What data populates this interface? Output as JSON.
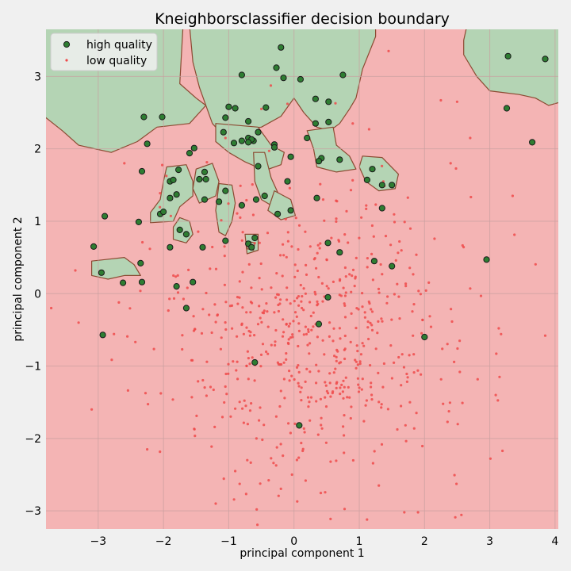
{
  "chart_data": {
    "type": "scatter",
    "title": "Kneighborsclassifier decision boundary",
    "xlabel": "principal component 1",
    "ylabel": "principal component 2",
    "xlim": [
      -3.8,
      4.05
    ],
    "ylim": [
      -3.25,
      3.65
    ],
    "xticks": [
      -3,
      -2,
      -1,
      0,
      1,
      2,
      3,
      4
    ],
    "yticks": [
      -3,
      -2,
      -1,
      0,
      1,
      2,
      3
    ],
    "grid": true,
    "legend": {
      "placement": "top-left"
    },
    "background_region_color": "#f4b4b4",
    "highlight_region_color": "#b4d4b4",
    "boundary_color": "#8b4a32",
    "series": [
      {
        "name": "high quality",
        "color": "#2e7d32",
        "edge": "#1b1b1b",
        "points": [
          [
            3.28,
            3.28
          ],
          [
            3.85,
            3.24
          ],
          [
            3.26,
            2.56
          ],
          [
            3.65,
            2.09
          ],
          [
            -0.2,
            3.4
          ],
          [
            -0.27,
            3.12
          ],
          [
            -0.8,
            3.02
          ],
          [
            -0.16,
            2.98
          ],
          [
            0.1,
            2.96
          ],
          [
            0.75,
            3.02
          ],
          [
            -1.0,
            2.58
          ],
          [
            -0.9,
            2.56
          ],
          [
            -0.43,
            2.57
          ],
          [
            0.33,
            2.69
          ],
          [
            0.53,
            2.65
          ],
          [
            -2.3,
            2.44
          ],
          [
            -2.02,
            2.44
          ],
          [
            -1.05,
            2.43
          ],
          [
            -0.7,
            2.38
          ],
          [
            0.33,
            2.35
          ],
          [
            0.53,
            2.37
          ],
          [
            -1.08,
            2.23
          ],
          [
            -0.55,
            2.23
          ],
          [
            -0.7,
            2.15
          ],
          [
            -0.8,
            2.11
          ],
          [
            -0.62,
            2.11
          ],
          [
            -0.3,
            2.06
          ],
          [
            -0.3,
            2.02
          ],
          [
            0.2,
            2.15
          ],
          [
            -2.25,
            2.07
          ],
          [
            -0.92,
            2.08
          ],
          [
            -0.65,
            2.13
          ],
          [
            -0.7,
            2.09
          ],
          [
            -1.53,
            2.01
          ],
          [
            -1.6,
            1.94
          ],
          [
            -0.05,
            1.89
          ],
          [
            0.42,
            1.87
          ],
          [
            0.38,
            1.83
          ],
          [
            0.7,
            1.85
          ],
          [
            -1.77,
            1.71
          ],
          [
            -2.33,
            1.69
          ],
          [
            -1.9,
            1.55
          ],
          [
            -1.85,
            1.57
          ],
          [
            -0.55,
            1.76
          ],
          [
            1.2,
            1.72
          ],
          [
            1.12,
            1.57
          ],
          [
            -1.37,
            1.68
          ],
          [
            -1.35,
            1.58
          ],
          [
            -1.45,
            1.58
          ],
          [
            -1.05,
            1.42
          ],
          [
            -0.45,
            1.35
          ],
          [
            -0.58,
            1.3
          ],
          [
            -0.1,
            1.55
          ],
          [
            0.35,
            1.32
          ],
          [
            1.35,
            1.5
          ],
          [
            1.5,
            1.5
          ],
          [
            -1.9,
            1.32
          ],
          [
            -1.8,
            1.37
          ],
          [
            -1.37,
            1.3
          ],
          [
            -1.15,
            1.27
          ],
          [
            -0.8,
            1.22
          ],
          [
            -0.25,
            1.1
          ],
          [
            -0.05,
            1.15
          ],
          [
            1.35,
            1.18
          ],
          [
            -2.05,
            1.1
          ],
          [
            -2.0,
            1.13
          ],
          [
            -2.38,
            0.99
          ],
          [
            -2.9,
            1.07
          ],
          [
            -1.75,
            0.88
          ],
          [
            -1.65,
            0.82
          ],
          [
            -1.05,
            0.73
          ],
          [
            -0.6,
            0.77
          ],
          [
            -0.7,
            0.69
          ],
          [
            -0.65,
            0.64
          ],
          [
            0.52,
            0.7
          ],
          [
            0.7,
            0.57
          ],
          [
            -3.07,
            0.65
          ],
          [
            -1.9,
            0.64
          ],
          [
            -1.4,
            0.64
          ],
          [
            -2.35,
            0.42
          ],
          [
            1.23,
            0.45
          ],
          [
            1.5,
            0.38
          ],
          [
            2.95,
            0.47
          ],
          [
            -2.95,
            0.29
          ],
          [
            -2.62,
            0.15
          ],
          [
            -2.33,
            0.16
          ],
          [
            -1.8,
            0.1
          ],
          [
            -1.55,
            0.16
          ],
          [
            -1.65,
            -0.2
          ],
          [
            0.52,
            -0.05
          ],
          [
            0.38,
            -0.42
          ],
          [
            -2.93,
            -0.57
          ],
          [
            2.0,
            -0.6
          ],
          [
            -0.6,
            -0.95
          ],
          [
            0.08,
            -1.82
          ]
        ]
      },
      {
        "name": "low quality",
        "color": "#ee4a4a",
        "random_cloud": {
          "center": [
            0.3,
            -0.6
          ],
          "spread": [
            1.25,
            1.05
          ],
          "count": 620,
          "seed": 7
        },
        "points": [
          [
            -3.72,
            -0.2
          ],
          [
            -3.3,
            -0.4
          ],
          [
            3.1,
            -0.83
          ],
          [
            3.15,
            -1.15
          ],
          [
            3.85,
            -0.58
          ],
          [
            1.9,
            -3.02
          ],
          [
            0.05,
            -2.87
          ],
          [
            -1.2,
            -2.9
          ],
          [
            -0.9,
            -2.45
          ],
          [
            1.3,
            -2.65
          ],
          [
            2.5,
            2.65
          ],
          [
            2.25,
            2.67
          ],
          [
            1.15,
            2.27
          ],
          [
            0.9,
            2.35
          ],
          [
            -1.05,
            2.15
          ],
          [
            -0.5,
            2.55
          ],
          [
            -0.1,
            2.62
          ],
          [
            1.45,
            3.35
          ],
          [
            2.7,
            2.15
          ],
          [
            2.4,
            1.8
          ],
          [
            3.35,
            1.35
          ],
          [
            -2.6,
            1.8
          ],
          [
            -3.35,
            0.32
          ],
          [
            -3.1,
            -1.6
          ],
          [
            -2.25,
            -2.15
          ]
        ]
      }
    ]
  }
}
